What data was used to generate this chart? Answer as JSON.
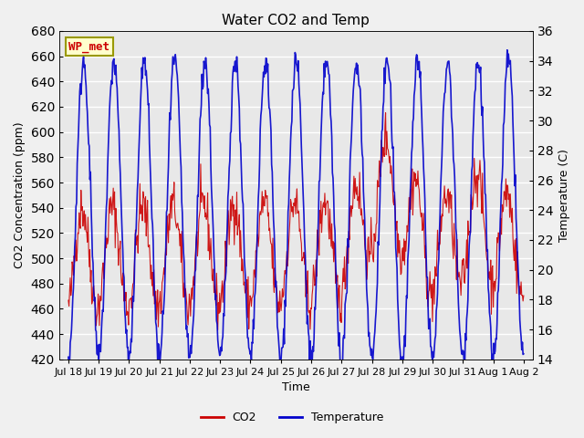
{
  "title": "Water CO2 and Temp",
  "xlabel": "Time",
  "ylabel_left": "CO2 Concentration (ppm)",
  "ylabel_right": "Temperature (C)",
  "annotation": "WP_met",
  "co2_ylim": [
    420,
    680
  ],
  "temp_ylim": [
    14,
    36
  ],
  "co2_yticks": [
    420,
    440,
    460,
    480,
    500,
    520,
    540,
    560,
    580,
    600,
    620,
    640,
    660,
    680
  ],
  "temp_yticks": [
    14,
    16,
    18,
    20,
    22,
    24,
    26,
    28,
    30,
    32,
    34,
    36
  ],
  "xtick_positions": [
    0,
    1,
    2,
    3,
    4,
    5,
    6,
    7,
    8,
    9,
    10,
    11,
    12,
    13,
    14,
    15
  ],
  "xtick_labels": [
    "Jul 18",
    "Jul 19",
    "Jul 20",
    "Jul 21",
    "Jul 22",
    "Jul 23",
    "Jul 24",
    "Jul 25",
    "Jul 26",
    "Jul 27",
    "Jul 28",
    "Jul 29",
    "Jul 30",
    "Jul 31",
    "Aug 1",
    "Aug 2"
  ],
  "background_color": "#f0f0f0",
  "plot_bg_color": "#e8e8e8",
  "co2_color": "#cc0000",
  "temp_color": "#0000cc",
  "grid_color": "#ffffff",
  "annotation_bg": "#ffffcc",
  "annotation_border": "#999900",
  "annotation_text_color": "#cc0000",
  "legend_co2_label": "CO2",
  "legend_temp_label": "Temperature",
  "seed": 42,
  "n_days": 15,
  "points_per_day": 48
}
